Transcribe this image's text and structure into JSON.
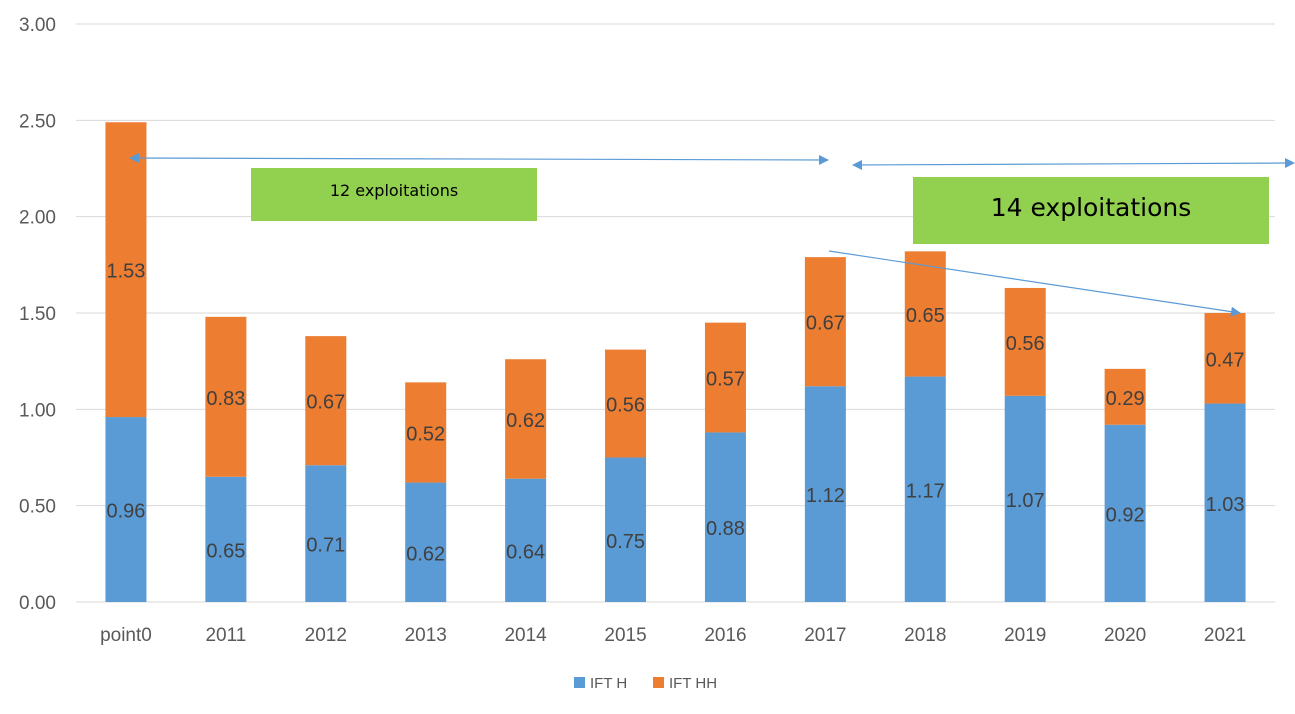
{
  "chart_data": {
    "type": "bar",
    "stacked": true,
    "categories": [
      "point0",
      "2011",
      "2012",
      "2013",
      "2014",
      "2015",
      "2016",
      "2017",
      "2018",
      "2019",
      "2020",
      "2021"
    ],
    "series": [
      {
        "name": "IFT H",
        "color": "#5B9BD5",
        "values": [
          0.96,
          0.65,
          0.71,
          0.62,
          0.64,
          0.75,
          0.88,
          1.12,
          1.17,
          1.07,
          0.92,
          1.03
        ]
      },
      {
        "name": "IFT HH",
        "color": "#ED7D31",
        "values": [
          1.53,
          0.83,
          0.67,
          0.52,
          0.62,
          0.56,
          0.57,
          0.67,
          0.65,
          0.56,
          0.29,
          0.47
        ]
      }
    ],
    "ylim": [
      0,
      3
    ],
    "yticks": [
      "0.00",
      "0.50",
      "1.00",
      "1.50",
      "2.00",
      "2.50",
      "3.00"
    ],
    "grid": true,
    "legend": "bottom",
    "data_labels": true,
    "annotations": [
      {
        "text": "12 exploitations",
        "box_color": "#92D050",
        "span": [
          "point0",
          "2017"
        ]
      },
      {
        "text": "14 exploitations",
        "box_color": "#92D050",
        "span": [
          "2018",
          "2021"
        ]
      }
    ],
    "arrow_color": "#5B9BD5"
  }
}
